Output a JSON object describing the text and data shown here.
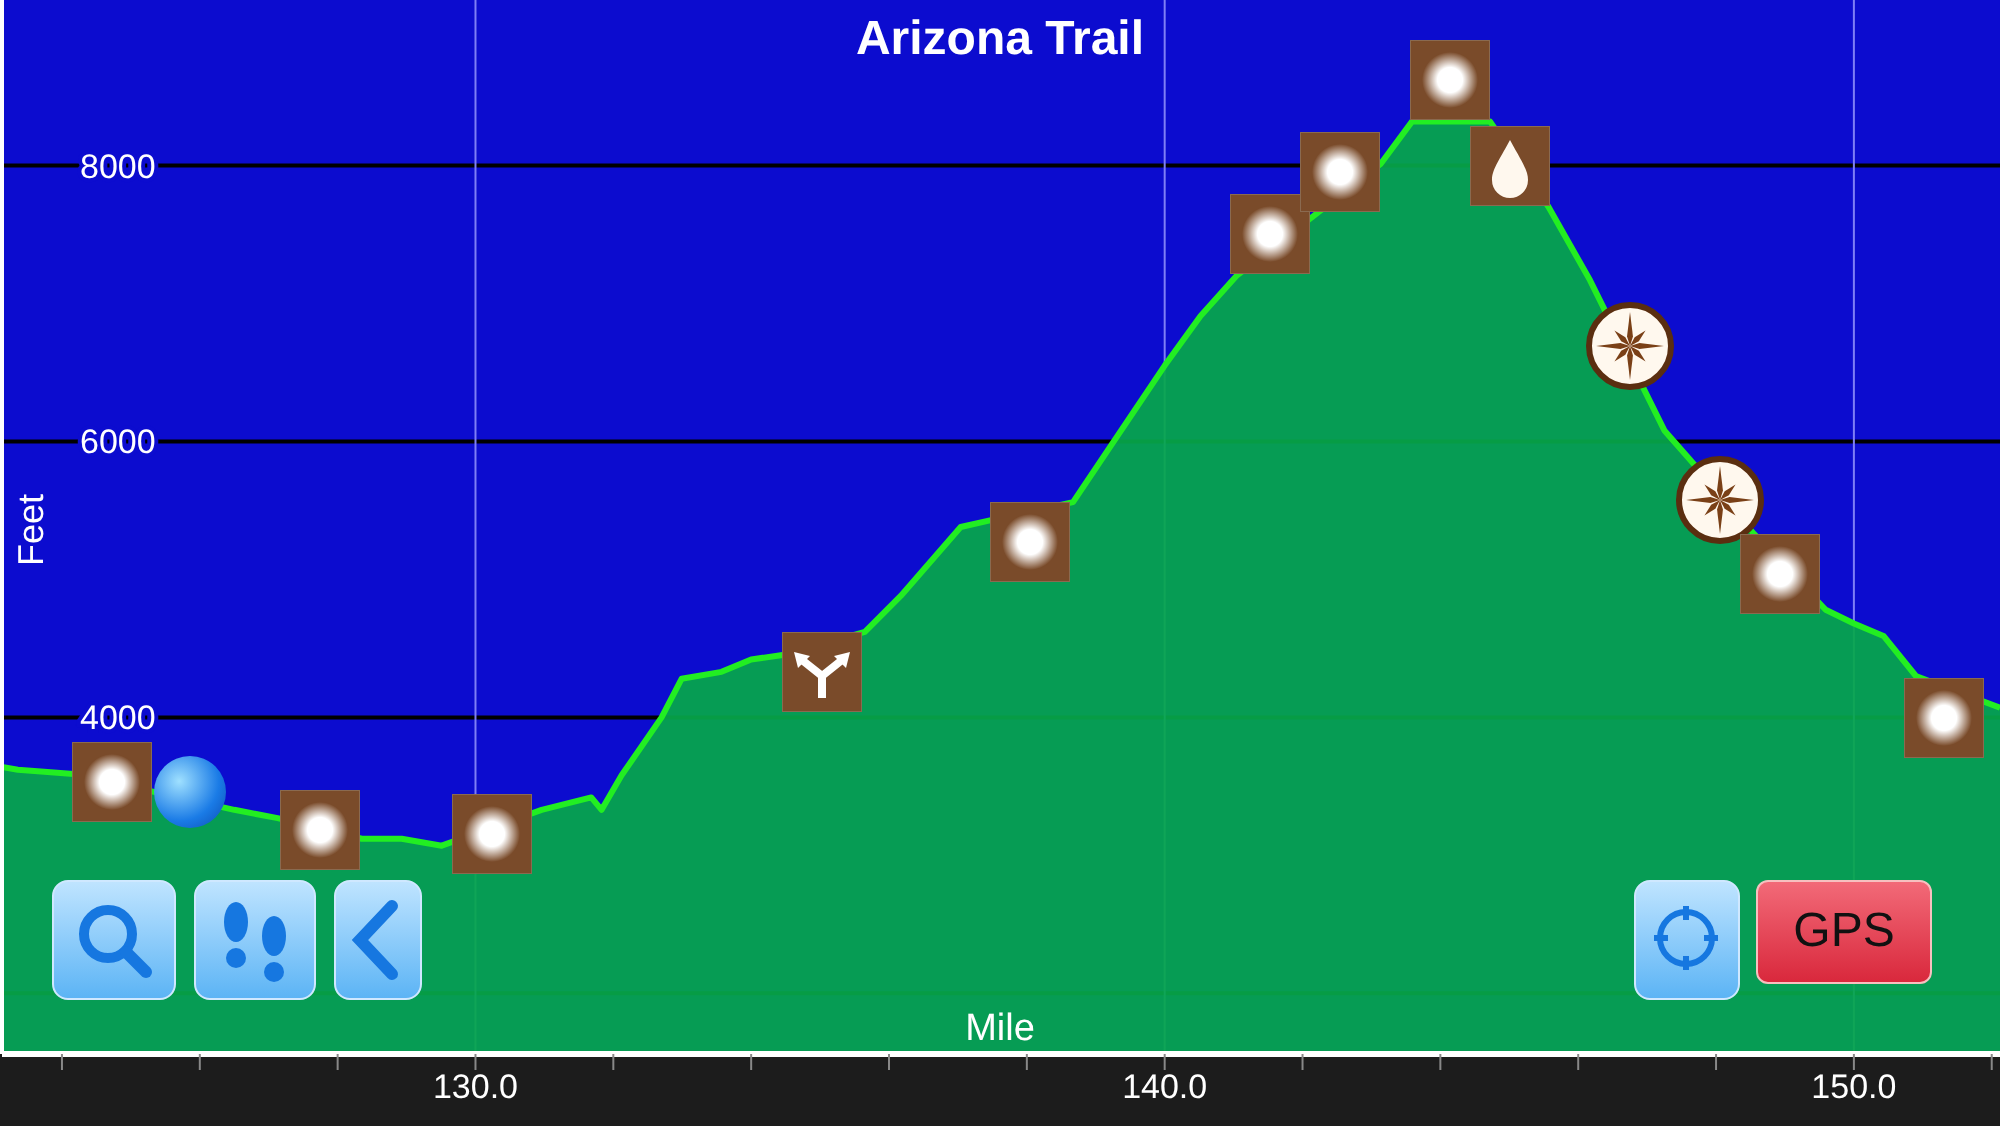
{
  "chart_data": {
    "type": "area",
    "title": "Arizona Trail",
    "xlabel": "Mile",
    "ylabel": "Feet",
    "x": [
      123.13,
      123.36,
      124.17,
      126.5,
      127.13,
      128.35,
      128.93,
      129.51,
      130.96,
      131.68,
      131.83,
      132.12,
      132.7,
      132.99,
      133.57,
      134.0,
      134.43,
      135.65,
      136.17,
      137.04,
      137.48,
      138.67,
      139.22,
      140.0,
      140.52,
      141.04,
      143.13,
      143.59,
      144.72,
      145.57,
      146.17,
      147.25,
      147.62,
      148.55,
      149.59,
      150.0,
      150.43,
      150.9,
      152.12
    ],
    "series": [
      {
        "color": "#22ee22",
        "values": [
          3640,
          3620,
          3590,
          3330,
          3270,
          3120,
          3120,
          3070,
          3330,
          3420,
          3330,
          3580,
          4000,
          4280,
          4330,
          4420,
          4450,
          4620,
          4880,
          5380,
          5430,
          5560,
          5970,
          6550,
          6910,
          7200,
          8010,
          8320,
          8320,
          7700,
          7170,
          6080,
          5870,
          5330,
          4780,
          4680,
          4590,
          4300,
          4070
        ]
      }
    ],
    "xlim": [
      123.13,
      152.12
    ],
    "ylim": [
      1560,
      9200
    ],
    "xticks": [
      {
        "value": 124,
        "label": null
      },
      {
        "value": 126,
        "label": null
      },
      {
        "value": 128,
        "label": null
      },
      {
        "value": 130,
        "label": "130.0"
      },
      {
        "value": 132,
        "label": null
      },
      {
        "value": 134,
        "label": null
      },
      {
        "value": 136,
        "label": null
      },
      {
        "value": 138,
        "label": null
      },
      {
        "value": 140,
        "label": "140.0"
      },
      {
        "value": 142,
        "label": null
      },
      {
        "value": 144,
        "label": null
      },
      {
        "value": 146,
        "label": null
      },
      {
        "value": 148,
        "label": null
      },
      {
        "value": 150,
        "label": "150.0"
      },
      {
        "value": 152,
        "label": null
      }
    ],
    "yticks": [
      {
        "value": 2000,
        "label": null
      },
      4000,
      6000,
      8000
    ],
    "grid": true,
    "annotations": [
      "GPS"
    ]
  }
}
